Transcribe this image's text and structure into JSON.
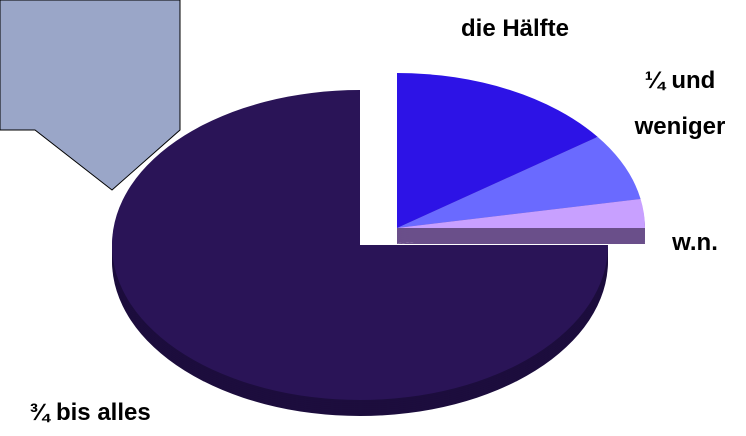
{
  "chart_data": {
    "type": "pie",
    "categories": [
      "die Hälfte",
      "¼ und weniger",
      "w.n.",
      "¾ bis alles"
    ],
    "values": [
      15,
      7,
      3,
      75
    ],
    "colors": [
      "#2d13e6",
      "#6a6aff",
      "#c8a0ff",
      "#2a1457"
    ],
    "exploded": [
      true,
      true,
      true,
      false
    ]
  }
}
